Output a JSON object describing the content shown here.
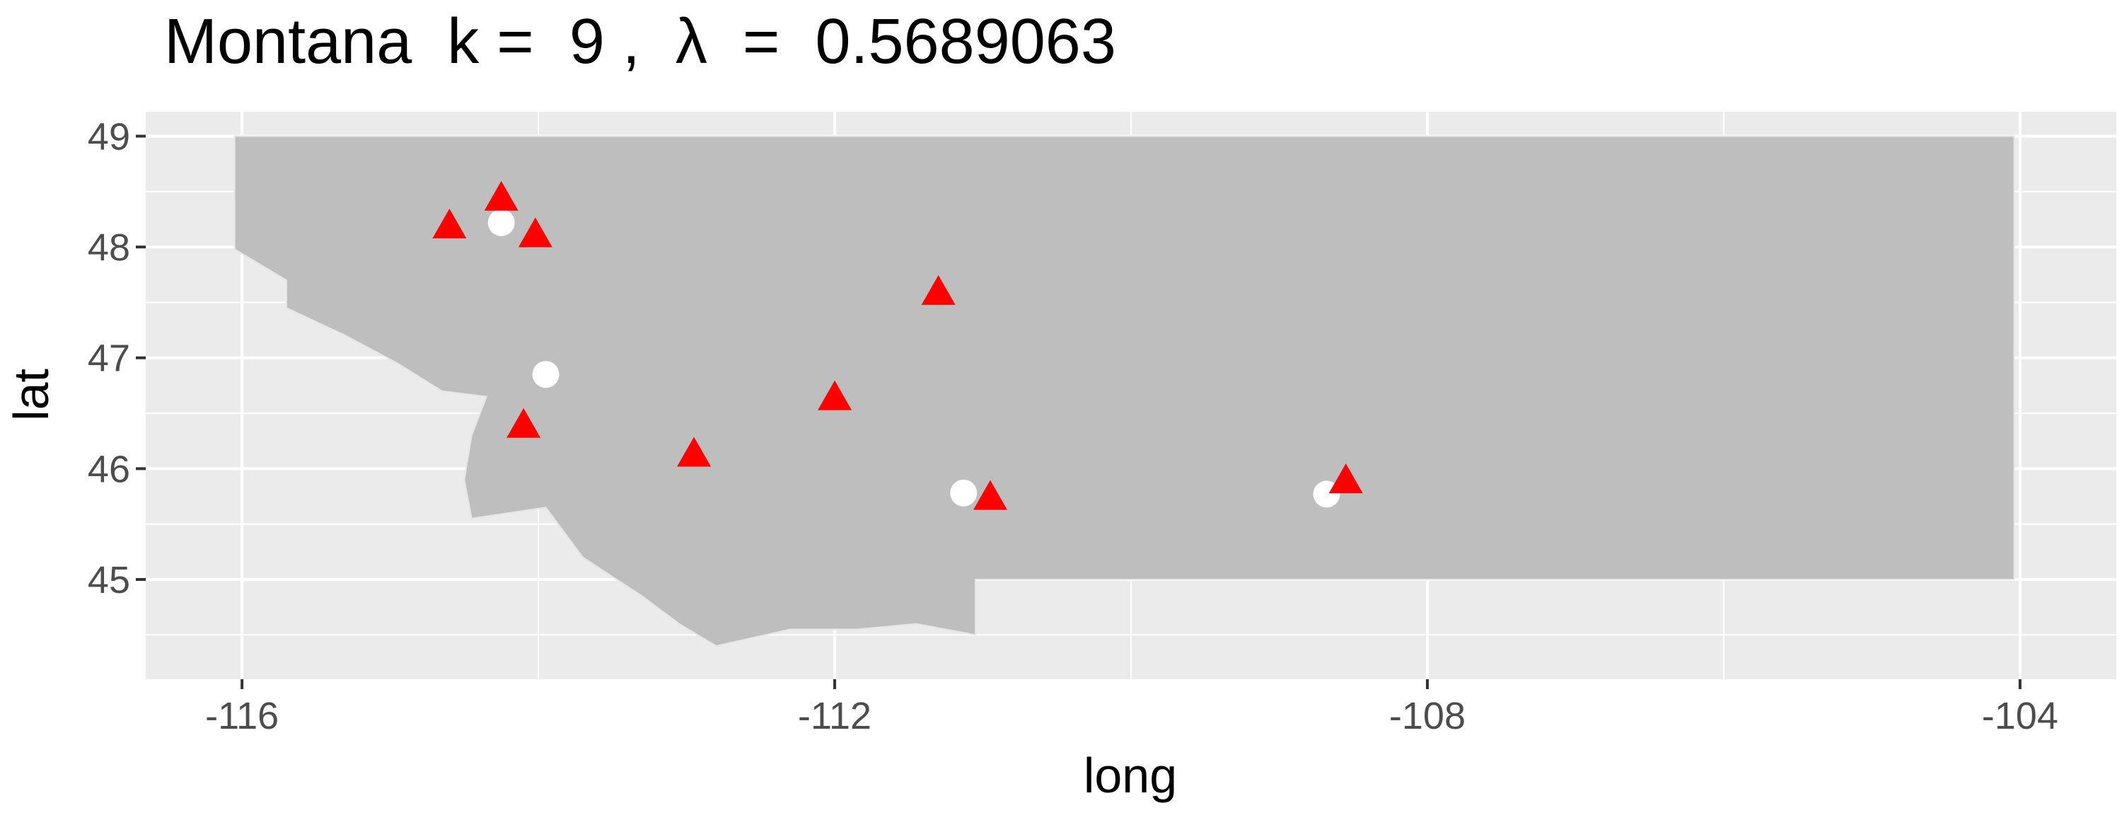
{
  "chart_data": {
    "type": "scatter",
    "title": "Montana  k =  9 ,  λ  =  0.5689063",
    "xlabel": "long",
    "ylabel": "lat",
    "xlim": [
      -116.65,
      -103.35
    ],
    "ylim": [
      44.1,
      49.22
    ],
    "x_ticks": [
      -116,
      -112,
      -108,
      -104
    ],
    "x_tick_labels": [
      "-116",
      "-112",
      "-108",
      "-104"
    ],
    "y_ticks": [
      45,
      46,
      47,
      48,
      49
    ],
    "y_tick_labels": [
      "45",
      "46",
      "47",
      "48",
      "49"
    ],
    "grid": true,
    "colors": {
      "panel": "#ebebeb",
      "grid": "#ffffff",
      "region": "#bebebe",
      "triangle": "#ff0000",
      "circle": "#ffffff"
    },
    "region_outline": [
      [
        -116.05,
        49.0
      ],
      [
        -104.04,
        49.0
      ],
      [
        -104.04,
        45.0
      ],
      [
        -111.05,
        45.0
      ],
      [
        -111.05,
        44.5
      ],
      [
        -111.45,
        44.6
      ],
      [
        -111.85,
        44.55
      ],
      [
        -112.3,
        44.55
      ],
      [
        -112.8,
        44.4
      ],
      [
        -113.05,
        44.6
      ],
      [
        -113.3,
        44.85
      ],
      [
        -113.7,
        45.2
      ],
      [
        -113.95,
        45.65
      ],
      [
        -114.45,
        45.55
      ],
      [
        -114.5,
        45.9
      ],
      [
        -114.45,
        46.3
      ],
      [
        -114.35,
        46.65
      ],
      [
        -114.65,
        46.7
      ],
      [
        -114.95,
        46.95
      ],
      [
        -115.3,
        47.2
      ],
      [
        -115.7,
        47.45
      ],
      [
        -115.7,
        47.7
      ],
      [
        -116.05,
        47.98
      ]
    ],
    "series": [
      {
        "shape": "triangle",
        "x": [
          -114.6,
          -114.25,
          -114.02,
          -111.3,
          -112.0,
          -114.1,
          -112.95,
          -110.95,
          -108.55
        ],
        "y": [
          48.18,
          48.43,
          48.1,
          47.58,
          46.63,
          46.38,
          46.12,
          45.73,
          45.88
        ]
      },
      {
        "shape": "circle",
        "x": [
          -114.25,
          -113.95,
          -111.13,
          -108.68
        ],
        "y": [
          48.22,
          46.85,
          45.78,
          45.77
        ]
      }
    ]
  }
}
